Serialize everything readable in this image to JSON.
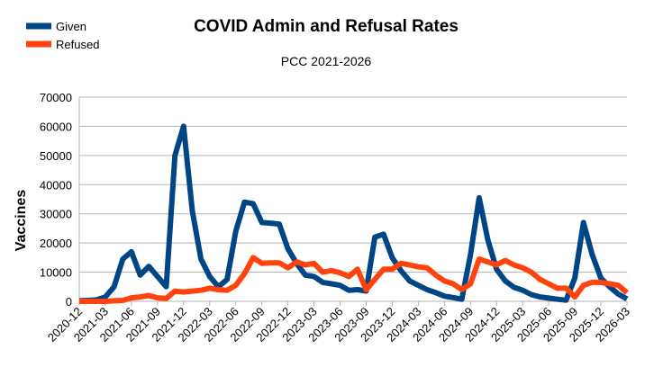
{
  "chart_data": {
    "type": "line",
    "title": "COVID Admin and Refusal Rates",
    "subtitle": "PCC 2021-2026",
    "xlabel": "",
    "ylabel": "Vaccines",
    "ylim": [
      0,
      70000
    ],
    "yticks": [
      0,
      10000,
      20000,
      30000,
      40000,
      50000,
      60000,
      70000
    ],
    "grid": true,
    "legend": "top-left",
    "x_tick_labels": [
      "2020-12",
      "2021-03",
      "2021-06",
      "2021-09",
      "2021-12",
      "2022-03",
      "2022-06",
      "2022-09",
      "2022-12",
      "2023-03",
      "2023-06",
      "2023-09",
      "2023-12",
      "2024-03",
      "2024-06",
      "2024-09",
      "2024-12",
      "2025-03",
      "2025-06",
      "2025-09",
      "2025-12",
      "2026-03"
    ],
    "series": [
      {
        "name": "Given",
        "color": "#004586",
        "values": [
          200,
          300,
          500,
          1500,
          5000,
          14500,
          17000,
          9000,
          12000,
          8500,
          5000,
          50000,
          60000,
          31000,
          14500,
          8500,
          5000,
          7500,
          24000,
          34000,
          33500,
          27000,
          26800,
          26500,
          18000,
          13000,
          9000,
          8500,
          6500,
          6000,
          5500,
          3800,
          4000,
          3500,
          22000,
          23000,
          15000,
          10500,
          7000,
          5500,
          4000,
          3000,
          1800,
          1300,
          700,
          16000,
          35500,
          21000,
          11000,
          7000,
          4800,
          3800,
          2300,
          1500,
          1100,
          700,
          400,
          8000,
          27000,
          16000,
          8000,
          5000,
          2500,
          800
        ],
        "x_start": "2020-12"
      },
      {
        "name": "Refused",
        "color": "#ff420e",
        "values": [
          0,
          0,
          0,
          0,
          200,
          300,
          1200,
          1500,
          2000,
          1200,
          1000,
          3500,
          3200,
          3500,
          3800,
          4500,
          4000,
          3800,
          5500,
          9500,
          15000,
          13000,
          13200,
          13200,
          11500,
          13500,
          12500,
          13000,
          10000,
          10500,
          9800,
          8500,
          11000,
          4000,
          7500,
          11000,
          11000,
          13000,
          12500,
          11800,
          11500,
          9000,
          7000,
          6000,
          4000,
          6000,
          14500,
          13500,
          12500,
          14000,
          12500,
          11500,
          10000,
          7500,
          6000,
          4500,
          4500,
          1500,
          5500,
          6500,
          6500,
          6000,
          5500,
          3000
        ],
        "x_start": "2020-12"
      }
    ]
  }
}
